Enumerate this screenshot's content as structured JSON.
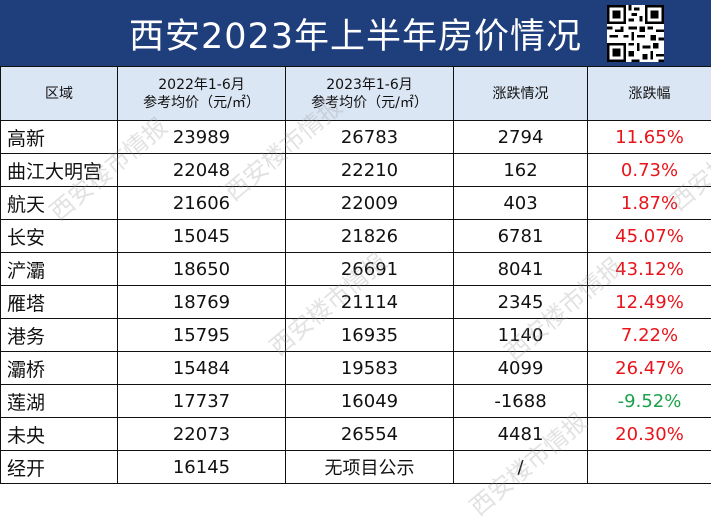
{
  "title": "西安2023年上半年房价情况",
  "headers": {
    "region": "区域",
    "h2022_line1": "2022年1-6月",
    "h2022_line2": "参考均价（元/㎡）",
    "h2023_line1": "2023年1-6月",
    "h2023_line2": "参考均价（元/㎡）",
    "change": "涨跌情况",
    "pct": "涨跌幅"
  },
  "watermark": "西安楼市情报",
  "colors": {
    "title_bg": "#1f3e7c",
    "header_bg": "#dbe6f4",
    "up": "#e8141b",
    "down": "#1aa24a"
  },
  "chart_data": {
    "type": "table",
    "title": "西安2023年上半年房价情况",
    "columns": [
      "区域",
      "2022年1-6月 参考均价（元/㎡）",
      "2023年1-6月 参考均价（元/㎡）",
      "涨跌情况",
      "涨跌幅"
    ],
    "rows": [
      {
        "region": "高新",
        "p2022": "23989",
        "p2023": "26783",
        "change": "2794",
        "pct": "11.65%",
        "dir": "up"
      },
      {
        "region": "曲江大明宫",
        "p2022": "22048",
        "p2023": "22210",
        "change": "162",
        "pct": "0.73%",
        "dir": "up"
      },
      {
        "region": "航天",
        "p2022": "21606",
        "p2023": "22009",
        "change": "403",
        "pct": "1.87%",
        "dir": "up"
      },
      {
        "region": "长安",
        "p2022": "15045",
        "p2023": "21826",
        "change": "6781",
        "pct": "45.07%",
        "dir": "up"
      },
      {
        "region": "浐灞",
        "p2022": "18650",
        "p2023": "26691",
        "change": "8041",
        "pct": "43.12%",
        "dir": "up"
      },
      {
        "region": "雁塔",
        "p2022": "18769",
        "p2023": "21114",
        "change": "2345",
        "pct": "12.49%",
        "dir": "up"
      },
      {
        "region": "港务",
        "p2022": "15795",
        "p2023": "16935",
        "change": "1140",
        "pct": "7.22%",
        "dir": "up"
      },
      {
        "region": "灞桥",
        "p2022": "15484",
        "p2023": "19583",
        "change": "4099",
        "pct": "26.47%",
        "dir": "up"
      },
      {
        "region": "莲湖",
        "p2022": "17737",
        "p2023": "16049",
        "change": "-1688",
        "pct": "-9.52%",
        "dir": "down"
      },
      {
        "region": "未央",
        "p2022": "22073",
        "p2023": "26554",
        "change": "4481",
        "pct": "20.30%",
        "dir": "up"
      },
      {
        "region": "经开",
        "p2022": "16145",
        "p2023": "无项目公示",
        "change": "/",
        "pct": "",
        "dir": "none"
      }
    ]
  }
}
